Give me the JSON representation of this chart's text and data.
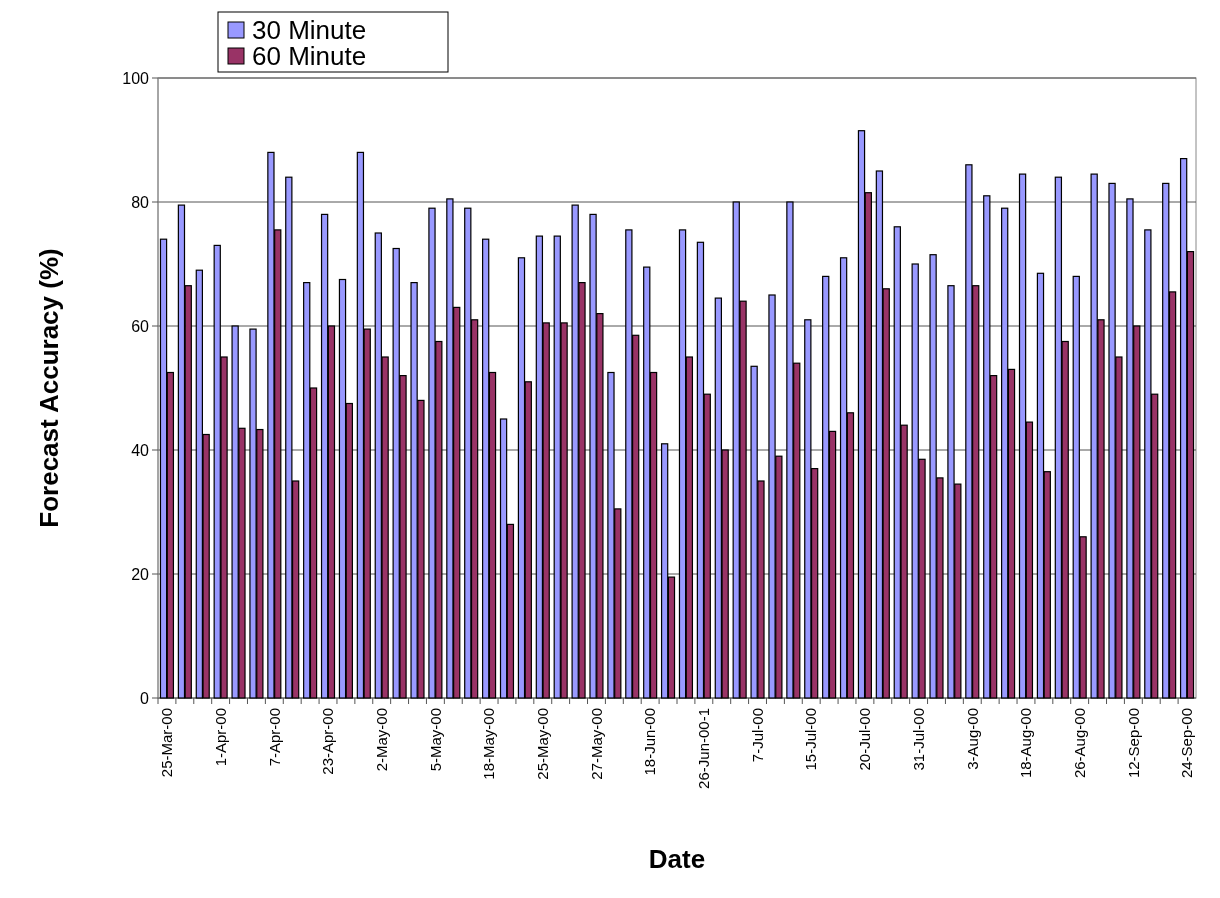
{
  "chart_data": {
    "type": "bar",
    "xlabel": "Date",
    "ylabel": "Forecast Accuracy (%)",
    "categories": [
      "25-Mar-00",
      null,
      null,
      "1-Apr-00",
      null,
      null,
      "7-Apr-00",
      null,
      null,
      "23-Apr-00",
      null,
      null,
      "2-May-00",
      null,
      null,
      "5-May-00",
      null,
      null,
      "18-May-00",
      null,
      null,
      "25-May-00",
      null,
      null,
      "27-May-00",
      null,
      null,
      "18-Jun-00",
      null,
      null,
      "26-Jun-00-1",
      null,
      null,
      "7-Jul-00",
      null,
      null,
      "15-Jul-00",
      null,
      null,
      "20-Jul-00",
      null,
      null,
      "31-Jul-00",
      null,
      null,
      "3-Aug-00",
      null,
      null,
      "18-Aug-00",
      null,
      null,
      "26-Aug-00",
      null,
      null,
      "12-Sep-00",
      null,
      null,
      "24-Sep-00"
    ],
    "series": [
      {
        "name": "30 Minute",
        "color": "#9999ff",
        "values": [
          74,
          79.5,
          69,
          73,
          60,
          59.5,
          88,
          84,
          67,
          78,
          67.5,
          88,
          75,
          72.5,
          67,
          79,
          80.5,
          79,
          74,
          45,
          71,
          74.5,
          74.5,
          79.5,
          78,
          52.5,
          75.5,
          69.5,
          41,
          75.5,
          73.5,
          64.5,
          80,
          53.5,
          65,
          80,
          61,
          68,
          71,
          91.5,
          85,
          76,
          70,
          71.5,
          66.5,
          86,
          81,
          79,
          84.5,
          68.5,
          84,
          68,
          84.5,
          83,
          80.5,
          75.5,
          83,
          87
        ]
      },
      {
        "name": "60 Minute",
        "color": "#993366",
        "values": [
          52.5,
          66.5,
          42.5,
          55,
          43.5,
          43.3,
          75.5,
          35,
          50,
          60,
          47.5,
          59.5,
          55,
          52,
          48,
          57.5,
          63,
          61,
          52.5,
          28,
          51,
          60.5,
          60.5,
          67,
          62,
          30.5,
          58.5,
          52.5,
          19.5,
          55,
          49,
          40,
          64,
          35,
          39,
          54,
          37,
          43,
          46,
          81.5,
          66,
          44,
          38.5,
          35.5,
          34.5,
          66.5,
          52,
          53,
          44.5,
          36.5,
          57.5,
          26,
          61,
          55,
          60,
          49,
          65.5,
          72
        ]
      }
    ],
    "ylim": [
      0,
      100
    ],
    "yticks": [
      0,
      20,
      40,
      60,
      80,
      100
    ],
    "grid": "y",
    "legend": "top left"
  }
}
